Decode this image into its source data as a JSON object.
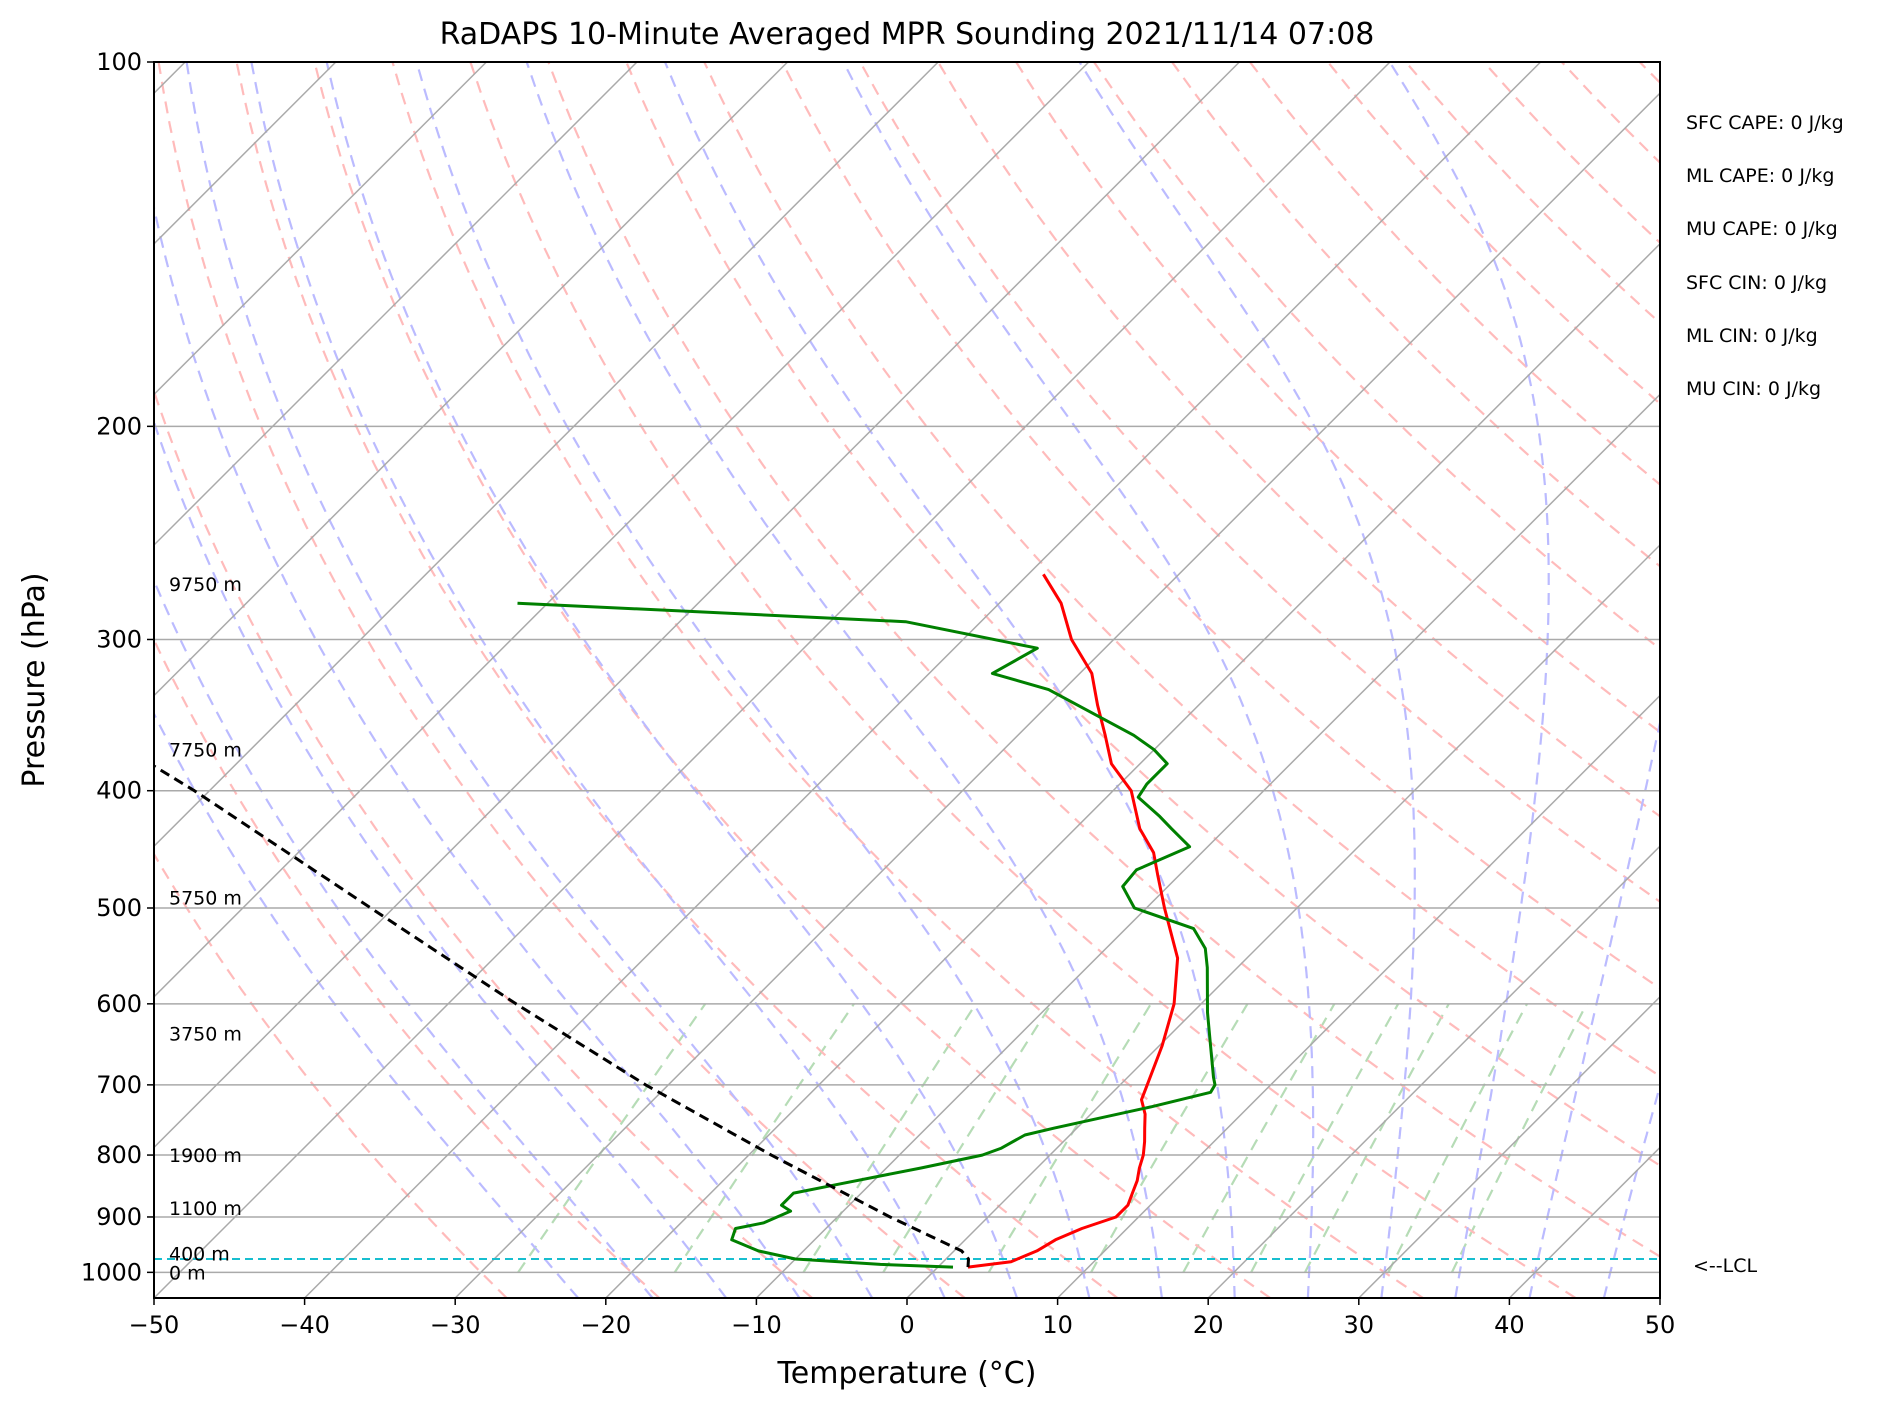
{
  "chart_data": {
    "type": "line",
    "subtype": "skew-T log-p sounding",
    "title": "RaDAPS 10-Minute Averaged MPR Sounding 2021/11/14 07:08",
    "xlabel": "Temperature (°C)",
    "ylabel": "Pressure (hPa)",
    "xlim": [
      -50,
      50
    ],
    "ylim_hpa": [
      1050,
      100
    ],
    "y_scale": "log",
    "grid": true,
    "x_ticks": [
      "−50",
      "−40",
      "−30",
      "−20",
      "−10",
      "0",
      "10",
      "20",
      "30",
      "40",
      "50"
    ],
    "y_ticks": [
      "100",
      "200",
      "300",
      "400",
      "500",
      "600",
      "700",
      "800",
      "900",
      "1000"
    ],
    "series": [
      {
        "role": "temperature",
        "color": "#ff0000",
        "pressure": [
          990,
          980,
          960,
          940,
          920,
          900,
          880,
          860,
          840,
          820,
          800,
          780,
          760,
          740,
          720,
          700,
          650,
          600,
          550,
          500,
          470,
          450,
          430,
          400,
          380,
          360,
          340,
          320,
          300,
          280,
          265
        ],
        "values": [
          2,
          4.5,
          5.5,
          6,
          7,
          8.5,
          8.5,
          8,
          7.5,
          6.8,
          6.2,
          5.4,
          4.5,
          3.6,
          2.4,
          1.8,
          0.2,
          -1.8,
          -4.6,
          -8.8,
          -11.4,
          -13.2,
          -15.7,
          -18.8,
          -21.9,
          -24.2,
          -26.7,
          -29.2,
          -32.8,
          -35.9,
          -39
        ]
      },
      {
        "role": "dewpoint",
        "color": "#008000",
        "pressure": [
          990,
          985,
          975,
          960,
          940,
          920,
          910,
          890,
          880,
          860,
          845,
          820,
          800,
          790,
          770,
          760,
          730,
          710,
          700,
          690,
          660,
          610,
          560,
          540,
          520,
          500,
          480,
          465,
          445,
          430,
          420,
          405,
          395,
          380,
          370,
          360,
          330,
          320,
          305,
          290,
          280
        ],
        "values": [
          1,
          -4,
          -10,
          -13,
          -15.5,
          -16,
          -14.5,
          -13.5,
          -14.5,
          -14.5,
          -12,
          -7.7,
          -4.5,
          -3.7,
          -3,
          -1.5,
          3.5,
          6.5,
          6.3,
          5.7,
          4,
          1,
          -2,
          -3.4,
          -5.5,
          -10.8,
          -13,
          -13.2,
          -11.2,
          -13.6,
          -15.2,
          -17.9,
          -18.2,
          -18.2,
          -20,
          -22.3,
          -31,
          -35.8,
          -34.5,
          -45,
          -72
        ]
      },
      {
        "role": "parcel",
        "color": "#000000",
        "pressure": [
          990,
          975,
          960,
          900,
          800,
          700,
          600,
          500,
          400,
          300,
          270
        ],
        "values": [
          2,
          1.5,
          0.5,
          -6.5,
          -18.5,
          -31.5,
          -45.5,
          -61.5,
          -81,
          -107.5,
          -118
        ]
      }
    ],
    "height_labels": [
      {
        "text": "9750 m",
        "pressure": 270
      },
      {
        "text": "7750 m",
        "pressure": 370
      },
      {
        "text": "5750 m",
        "pressure": 490
      },
      {
        "text": "3750 m",
        "pressure": 635
      },
      {
        "text": "1900 m",
        "pressure": 800
      },
      {
        "text": "1100 m",
        "pressure": 885
      },
      {
        "text": "400 m",
        "pressure": 965
      },
      {
        "text": "0 m",
        "pressure": 1000
      }
    ],
    "lcl": {
      "pressure": 975,
      "label": "<--LCL"
    },
    "annotations": [
      "SFC CAPE: 0 J/kg",
      "ML CAPE: 0 J/kg",
      "MU CAPE: 0 J/kg",
      "SFC CIN: 0 J/kg",
      "ML CIN: 0 J/kg",
      "MU CIN: 0 J/kg"
    ],
    "colors": {
      "isotherm": "#aaaaaa",
      "dry_adiabat": "#ffbbbb",
      "moist_adiabat": "#bbbbff",
      "mixing_ratio": "#b6dcb6",
      "lcl_line": "#17becf"
    }
  }
}
